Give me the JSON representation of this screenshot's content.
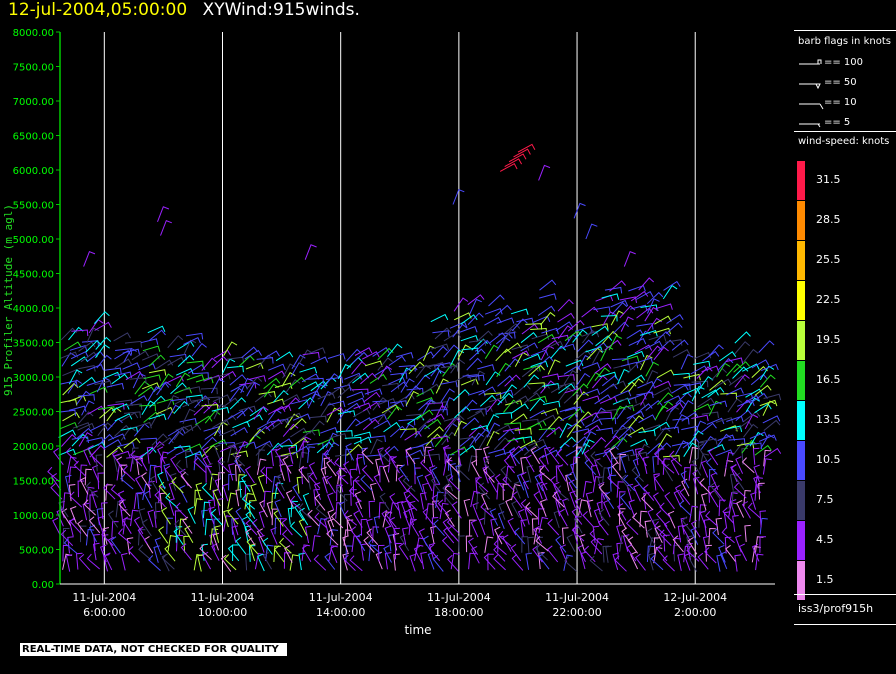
{
  "header": {
    "date": "12-jul-2004,05:00:00",
    "plot_name": "XYWind:915winds."
  },
  "chart_data": {
    "type": "scatter",
    "subtype": "wind-barb",
    "ylabel": "915 Profiler Altitude (m agl)",
    "xlabel": "time",
    "ylim": [
      0,
      8000
    ],
    "y_ticks": [
      "0.00",
      "500.00",
      "1000.00",
      "1500.00",
      "2000.00",
      "2500.00",
      "3000.00",
      "3500.00",
      "4000.00",
      "4500.00",
      "5000.00",
      "5500.00",
      "6000.00",
      "6500.00",
      "7000.00",
      "7500.00",
      "8000.00"
    ],
    "x_range_hours": [
      4.5,
      28.7
    ],
    "x_ticks": [
      {
        "date": "11-Jul-2004",
        "time": "6:00:00",
        "hour": 6
      },
      {
        "date": "11-Jul-2004",
        "time": "10:00:00",
        "hour": 10
      },
      {
        "date": "11-Jul-2004",
        "time": "14:00:00",
        "hour": 14
      },
      {
        "date": "11-Jul-2004",
        "time": "18:00:00",
        "hour": 18
      },
      {
        "date": "11-Jul-2004",
        "time": "22:00:00",
        "hour": 22
      },
      {
        "date": "12-Jul-2004",
        "time": "2:00:00",
        "hour": 26
      }
    ],
    "gridlines_x": true,
    "colors": {
      "axis": "#00cc00",
      "tick_text": "#00ff00",
      "grid": "#ffffff"
    }
  },
  "legend": {
    "barb_title": "barb flags in knots",
    "barbs": [
      {
        "label": "== 100",
        "kind": "flag"
      },
      {
        "label": "== 50",
        "kind": "pennant"
      },
      {
        "label": "== 10",
        "kind": "full"
      },
      {
        "label": "== 5",
        "kind": "half"
      }
    ],
    "speed_title": "wind-speed: knots",
    "scale": [
      {
        "label": "31.5",
        "color": "#ff1a4a"
      },
      {
        "label": "28.5",
        "color": "#ff8a00"
      },
      {
        "label": "25.5",
        "color": "#ffb800"
      },
      {
        "label": "22.5",
        "color": "#ffff00"
      },
      {
        "label": "19.5",
        "color": "#b8ff3a"
      },
      {
        "label": "16.5",
        "color": "#22dd22"
      },
      {
        "label": "13.5",
        "color": "#00ffff"
      },
      {
        "label": "10.5",
        "color": "#4a4aff"
      },
      {
        "label": "7.5",
        "color": "#3a3a6a"
      },
      {
        "label": "4.5",
        "color": "#9a22ff"
      },
      {
        "label": "1.5",
        "color": "#ee88ee"
      }
    ],
    "source": "iss3/prof915h"
  },
  "footer": {
    "disclaimer": "REAL-TIME DATA, NOT CHECKED FOR QUALITY"
  }
}
